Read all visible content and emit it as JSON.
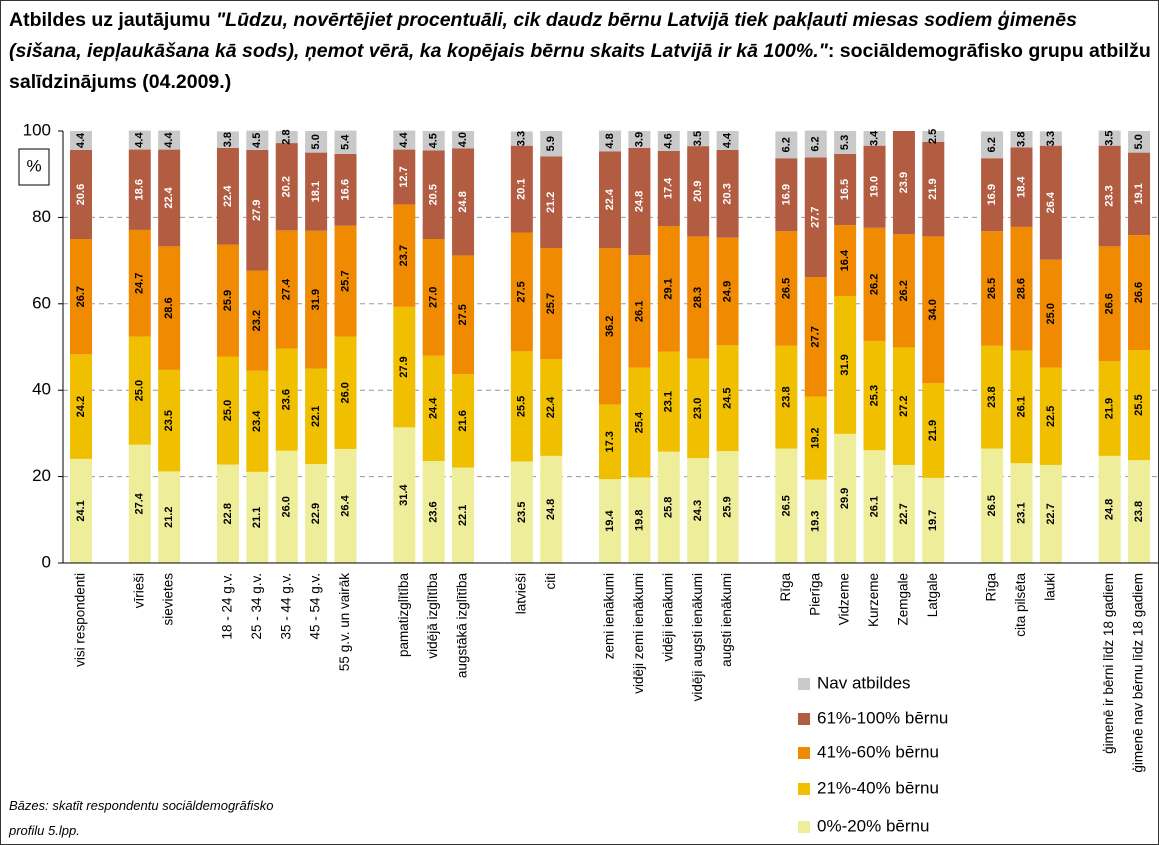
{
  "chart_data": {
    "type": "stacked_bar",
    "title": [
      "Atbildes uz jautājumu",
      "\"Lūdzu, novērtējiet procentuāli, cik daudz bērnu Latvijā tiek pakļauti miesas sodiem ģimenēs (sišana, iepļaukāšana kā sods), ņemot vērā, ka kopējais bērnu skaits Latvijā ir kā 100%.\"",
      ": sociāldemogrāfisko grupu atbilžu salīdzinājums (04.2009.)"
    ],
    "y_label": "%",
    "note": "Bāzes: skatīt respondentu sociāldemogrāfisko profilu 5.lpp.",
    "categories": [
      "visi respondenti",
      null,
      "vīrieši",
      "sievietes",
      null,
      "18 - 24 g.v.",
      "25 - 34 g.v.",
      "35 - 44 g.v.",
      "45 - 54 g.v.",
      "55 g.v. un vairāk",
      null,
      "pamatizglītība",
      "vidējā izglītība",
      "augstākā izglītība",
      null,
      "latvieši",
      "citi",
      null,
      "zemi ienākumi",
      "vidēji zemi ienākumi",
      "vidēji ienākumi",
      "vidēji augsti ienākumi",
      "augsti ienākumi",
      null,
      "Rīga",
      "Pierīga",
      "Vidzeme",
      "Kurzeme",
      "Zemgale",
      "Latgale",
      null,
      "Rīga",
      "cita pilsēta",
      "lauki",
      null,
      "ģimenē ir bērni līdz 18 gadiem",
      "ģimenē nav bērnu līdz 18 gadiem"
    ],
    "series": [
      {
        "name": "0%-20% bērnu",
        "color": "#eeee9a",
        "label_color": "#000000",
        "values": [
          24.1,
          null,
          27.4,
          21.2,
          null,
          22.8,
          21.1,
          26.0,
          22.9,
          26.4,
          null,
          31.4,
          23.6,
          22.1,
          null,
          23.5,
          24.8,
          null,
          19.4,
          19.8,
          25.8,
          24.3,
          25.9,
          null,
          26.5,
          19.3,
          29.9,
          26.1,
          22.7,
          19.7,
          null,
          26.5,
          23.1,
          22.7,
          null,
          24.8,
          23.8
        ],
        "value_labels": [
          "24.1",
          null,
          "27.4",
          "21.2",
          null,
          "22.8",
          "21.1",
          "26.0",
          "22.9",
          "26.4",
          null,
          "31.4",
          "23.6",
          "22.1",
          null,
          "23.5",
          "24.8",
          null,
          "19.4",
          "19.8",
          "25.8",
          "24.3",
          "25.9",
          null,
          "26.5",
          "19.3",
          "29.9",
          "26.1",
          "22.7",
          "19.7",
          null,
          "26.5",
          "23.1",
          "22.7",
          null,
          "24.8",
          "23.8"
        ]
      },
      {
        "name": "21%-40% bērnu",
        "color": "#efbf00",
        "label_color": "#000000",
        "values": [
          24.2,
          null,
          25.0,
          23.5,
          null,
          25.0,
          23.4,
          23.6,
          22.1,
          26.0,
          null,
          27.9,
          24.4,
          21.6,
          null,
          25.5,
          22.4,
          null,
          17.3,
          25.4,
          23.1,
          23.0,
          24.5,
          null,
          23.8,
          19.2,
          31.9,
          25.3,
          27.2,
          21.9,
          null,
          23.8,
          26.1,
          22.5,
          null,
          21.9,
          25.5
        ],
        "value_labels": [
          "24.2",
          null,
          "25.0",
          "23.5",
          null,
          "25.0",
          "23.4",
          "23.6",
          "22.1",
          "26.0",
          null,
          "27.9",
          "24.4",
          "21.6",
          null,
          "25.5",
          "22.4",
          null,
          "17.3",
          "25.4",
          "23.1",
          "23.0",
          "24.5",
          null,
          "23.8",
          "19.2",
          "31.9",
          "25.3",
          "27.2",
          "21.9",
          null,
          "23.8",
          "26.1",
          "22.5",
          null,
          "21.9",
          "25.5"
        ]
      },
      {
        "name": "41%-60% bērnu",
        "color": "#f08a00",
        "label_color": "#000000",
        "values": [
          26.7,
          null,
          24.7,
          28.6,
          null,
          25.9,
          23.2,
          27.4,
          31.9,
          25.7,
          null,
          23.7,
          27.0,
          27.5,
          null,
          27.5,
          25.7,
          null,
          36.2,
          26.1,
          29.1,
          28.3,
          24.9,
          null,
          26.5,
          27.7,
          16.4,
          26.2,
          26.2,
          34.0,
          null,
          26.5,
          28.6,
          25.0,
          null,
          26.6,
          26.6
        ],
        "value_labels": [
          "26.7",
          null,
          "24.7",
          "28.6",
          null,
          "25.9",
          "23.2",
          "27.4",
          "31.9",
          "25.7",
          null,
          "23.7",
          "27.0",
          "27.5",
          null,
          "27.5",
          "25.7",
          null,
          "36.2",
          "26.1",
          "29.1",
          "28.3",
          "24.9",
          null,
          "26.5",
          "27.7",
          "16.4",
          "26.2",
          "26.2",
          "34.0",
          null,
          "26.5",
          "28.6",
          "25.0",
          null,
          "26.6",
          "26.6"
        ]
      },
      {
        "name": "61%-100% bērnu",
        "color": "#b25c42",
        "label_color": "#ffffff",
        "values": [
          20.6,
          null,
          18.6,
          22.4,
          null,
          22.4,
          27.9,
          20.2,
          18.1,
          16.6,
          null,
          12.7,
          20.5,
          24.8,
          null,
          20.1,
          21.2,
          null,
          22.4,
          24.8,
          17.4,
          20.9,
          20.3,
          null,
          16.9,
          27.7,
          16.5,
          19.0,
          23.9,
          21.9,
          null,
          16.9,
          18.4,
          26.4,
          null,
          23.3,
          19.1
        ],
        "value_labels": [
          "20.6",
          null,
          "18.6",
          "22.4",
          null,
          "22.4",
          "27.9",
          "20.2",
          "18.1",
          "16.6",
          null,
          "12.7",
          "20.5",
          "24.8",
          null,
          "20.1",
          "21.2",
          null,
          "22.4",
          "24.8",
          "17.4",
          "20.9",
          "20.3",
          null,
          "16.9",
          "27.7",
          "16.5",
          "19.0",
          "23.9",
          "21.9",
          null,
          "16.9",
          "18.4",
          "26.4",
          null,
          "23.3",
          "19.1"
        ]
      },
      {
        "name": "Nav atbildes",
        "color": "#c9c9c9",
        "label_color": "#000000",
        "values": [
          4.4,
          null,
          4.4,
          4.4,
          null,
          3.8,
          4.5,
          2.8,
          5.0,
          5.4,
          null,
          4.4,
          4.5,
          4.0,
          null,
          3.3,
          5.9,
          null,
          4.8,
          3.9,
          4.6,
          3.5,
          4.4,
          null,
          6.2,
          6.2,
          5.3,
          3.4,
          null,
          2.5,
          null,
          6.2,
          3.8,
          3.3,
          null,
          3.5,
          5.0
        ],
        "value_labels": [
          "4.4",
          null,
          "4.4",
          "4.4",
          null,
          "3.8",
          "4.5",
          "2.8",
          "5.0",
          "5.4",
          null,
          "4.4",
          "4.5",
          "4.0",
          null,
          "3.3",
          "5.9",
          null,
          "4.8",
          "3.9",
          "4.6",
          "3.5",
          "4.4",
          null,
          "6.2",
          "6.2",
          "5.3",
          "3.4",
          null,
          "2.5",
          null,
          "6.2",
          "3.8",
          "3.3",
          null,
          "3.5",
          "5.0"
        ]
      }
    ],
    "ylim": [
      0,
      100
    ],
    "yticks": [
      0,
      20,
      40,
      60,
      80,
      100
    ],
    "grid": true
  }
}
